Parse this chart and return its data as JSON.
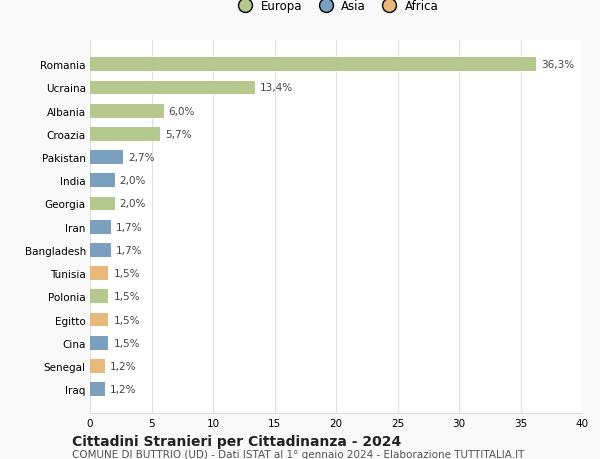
{
  "countries": [
    "Romania",
    "Ucraina",
    "Albania",
    "Croazia",
    "Pakistan",
    "India",
    "Georgia",
    "Iran",
    "Bangladesh",
    "Tunisia",
    "Polonia",
    "Egitto",
    "Cina",
    "Senegal",
    "Iraq"
  ],
  "values": [
    36.3,
    13.4,
    6.0,
    5.7,
    2.7,
    2.0,
    2.0,
    1.7,
    1.7,
    1.5,
    1.5,
    1.5,
    1.5,
    1.2,
    1.2
  ],
  "labels": [
    "36,3%",
    "13,4%",
    "6,0%",
    "5,7%",
    "2,7%",
    "2,0%",
    "2,0%",
    "1,7%",
    "1,7%",
    "1,5%",
    "1,5%",
    "1,5%",
    "1,5%",
    "1,2%",
    "1,2%"
  ],
  "continents": [
    "Europa",
    "Europa",
    "Europa",
    "Europa",
    "Asia",
    "Asia",
    "Europa",
    "Asia",
    "Asia",
    "Africa",
    "Europa",
    "Africa",
    "Asia",
    "Africa",
    "Asia"
  ],
  "colors": {
    "Europa": "#b5c98e",
    "Asia": "#7b9fbe",
    "Africa": "#e8b97a"
  },
  "legend_labels": [
    "Europa",
    "Asia",
    "Africa"
  ],
  "xlim": [
    0,
    40
  ],
  "xticks": [
    0,
    5,
    10,
    15,
    20,
    25,
    30,
    35,
    40
  ],
  "title": "Cittadini Stranieri per Cittadinanza - 2024",
  "subtitle": "COMUNE DI BUTTRIO (UD) - Dati ISTAT al 1° gennaio 2024 - Elaborazione TUTTITALIA.IT",
  "bg_color": "#f9f9f9",
  "plot_bg_color": "#ffffff",
  "grid_color": "#e0e0e0",
  "title_fontsize": 10,
  "subtitle_fontsize": 7.5,
  "label_fontsize": 7.5,
  "tick_fontsize": 7.5,
  "legend_fontsize": 8.5
}
